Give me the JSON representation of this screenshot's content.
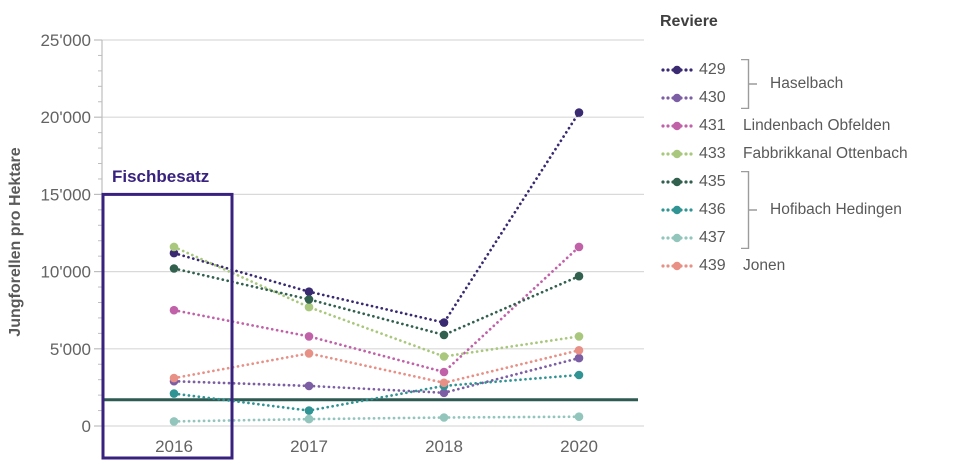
{
  "page": {
    "background": "#ffffff",
    "text_color": "#595959",
    "grid_color": "#d9d9d9",
    "axis_color": "#bdbdbd"
  },
  "chart_data": {
    "type": "line",
    "line_style": "dotted",
    "title": "",
    "ylabel": "Jungforellen pro Hektare",
    "xlabel": "",
    "legend_title": "Reviere",
    "legend_position": "right",
    "grid": true,
    "x_categories": [
      "2016",
      "2017",
      "2018",
      "2020"
    ],
    "ylim": [
      0,
      25000
    ],
    "ytick_step": 5000,
    "ytick_labels": [
      "0",
      "5'000",
      "10'000",
      "15'000",
      "20'000",
      "25'000"
    ],
    "reference_line": {
      "value": 1700,
      "color": "#2f5a52"
    },
    "annotation_box": {
      "label": "Fischbesatz",
      "color": "#38217f",
      "x_category": "2016",
      "y_from": 0,
      "y_to": 15000
    },
    "series": [
      {
        "id": "429",
        "group": "Haselbach",
        "color": "#3a2a72",
        "values": [
          11200,
          8700,
          6700,
          20300
        ]
      },
      {
        "id": "430",
        "group": "Haselbach",
        "color": "#7c5ea4",
        "values": [
          2900,
          2600,
          2150,
          4400
        ]
      },
      {
        "id": "431",
        "group": "Lindenbach Obfelden",
        "color": "#c162a9",
        "values": [
          7500,
          5800,
          3500,
          11600
        ]
      },
      {
        "id": "433",
        "group": "Fabbrikkanal Ottenbach",
        "color": "#a9c87d",
        "values": [
          11600,
          7700,
          4500,
          5800
        ]
      },
      {
        "id": "435",
        "group": "Hofibach Hedingen",
        "color": "#32604f",
        "values": [
          10200,
          8200,
          5900,
          9700
        ]
      },
      {
        "id": "436",
        "group": "Hofibach Hedingen",
        "color": "#2f9493",
        "values": [
          2100,
          1000,
          2600,
          3300
        ]
      },
      {
        "id": "437",
        "group": "Hofibach Hedingen",
        "color": "#92c5bc",
        "values": [
          300,
          450,
          550,
          600
        ]
      },
      {
        "id": "439",
        "group": "Jonen",
        "color": "#e89086",
        "values": [
          3100,
          4700,
          2800,
          4900
        ]
      }
    ],
    "legend_groups": [
      {
        "label": "Haselbach",
        "series_ids": [
          "429",
          "430"
        ],
        "bracket": true
      },
      {
        "label": "Lindenbach Obfelden",
        "series_ids": [
          "431"
        ],
        "bracket": false
      },
      {
        "label": "Fabbrikkanal Ottenbach",
        "series_ids": [
          "433"
        ],
        "bracket": false
      },
      {
        "label": "Hofibach Hedingen",
        "series_ids": [
          "435",
          "436",
          "437"
        ],
        "bracket": true
      },
      {
        "label": "Jonen",
        "series_ids": [
          "439"
        ],
        "bracket": false
      }
    ]
  }
}
